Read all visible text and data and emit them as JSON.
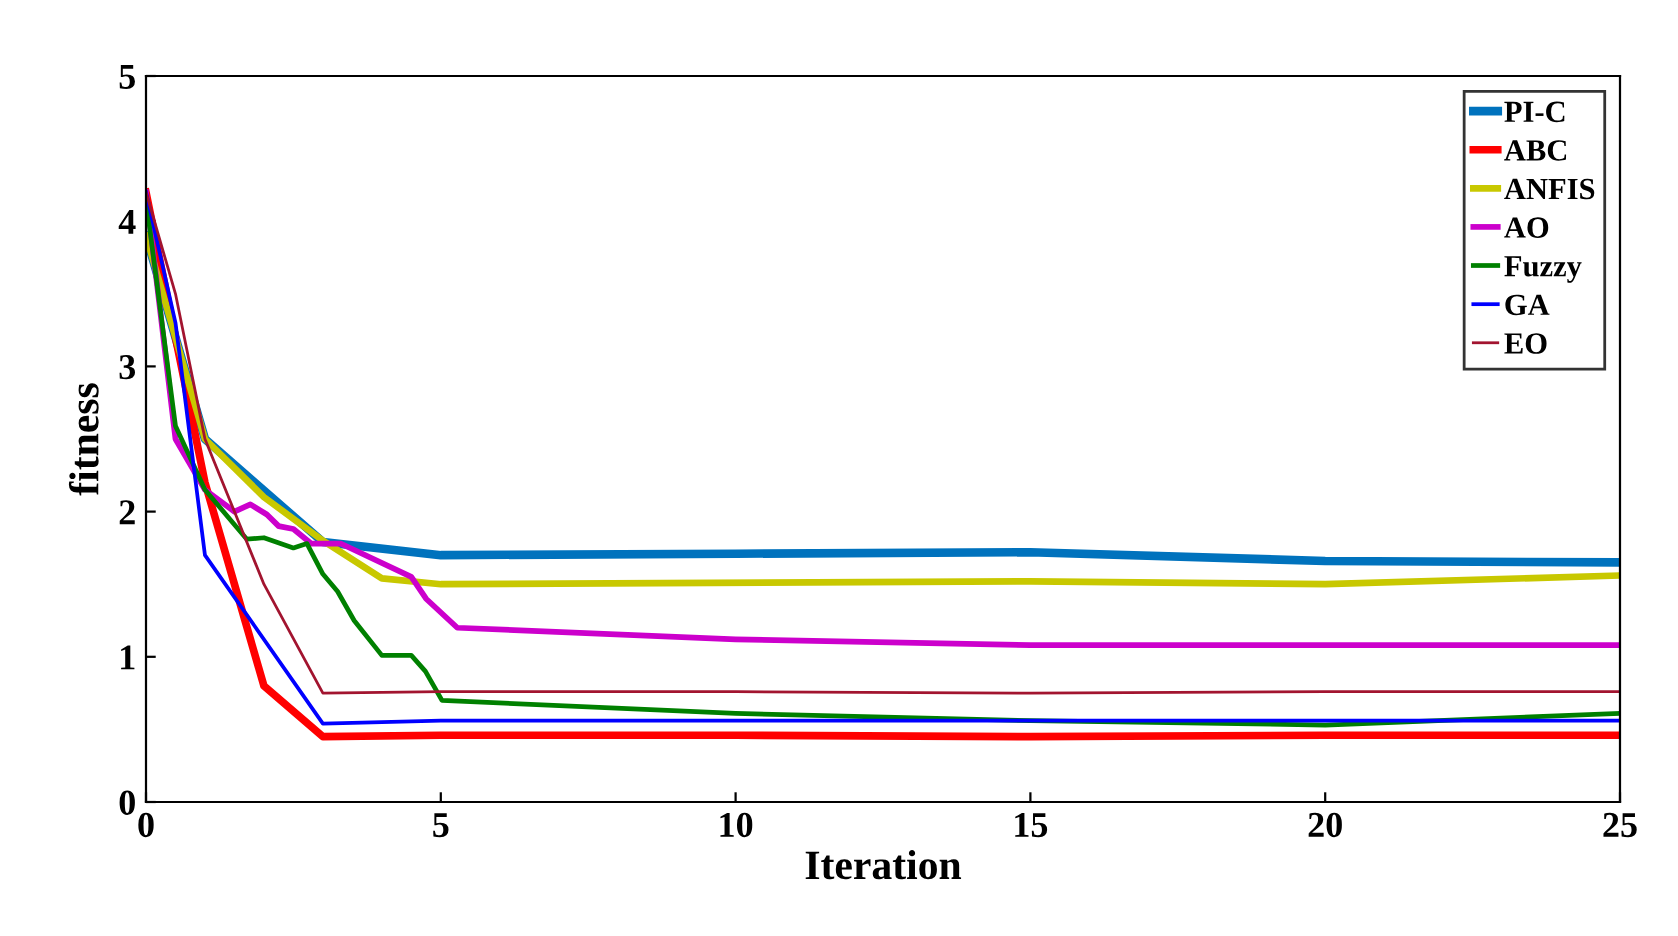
{
  "chart_data": {
    "type": "line",
    "xlabel": "Iteration",
    "ylabel": "fitness",
    "xlim": [
      0,
      25
    ],
    "ylim": [
      0,
      5
    ],
    "xticks": [
      0,
      5,
      10,
      15,
      20,
      25
    ],
    "yticks": [
      0,
      1,
      2,
      3,
      4,
      5
    ],
    "grid": false,
    "legend": "top right",
    "marker": "none",
    "line_style": "solid",
    "series": [
      {
        "name": "PI-C",
        "color": "#0072bd",
        "x": [
          0,
          1,
          3,
          5,
          10,
          15,
          20,
          25
        ],
        "values": [
          3.9,
          2.5,
          1.79,
          1.7,
          1.71,
          1.72,
          1.66,
          1.65
        ]
      },
      {
        "name": "ABC",
        "color": "#ff0000",
        "x": [
          0,
          1,
          2,
          3,
          5,
          10,
          15,
          20,
          25
        ],
        "values": [
          4.2,
          2.2,
          0.8,
          0.45,
          0.46,
          0.46,
          0.45,
          0.46,
          0.46
        ]
      },
      {
        "name": "ANFIS",
        "color": "#c8c800",
        "x": [
          0,
          1,
          2,
          3,
          4,
          5,
          15,
          20,
          25
        ],
        "values": [
          3.9,
          2.5,
          2.1,
          1.8,
          1.54,
          1.5,
          1.52,
          1.5,
          1.56
        ]
      },
      {
        "name": "AO",
        "color": "#cc00cc",
        "x": [
          0,
          0.5,
          1,
          1.5,
          1.77,
          2.05,
          2.25,
          2.5,
          2.8,
          3.3,
          4.5,
          4.75,
          5.28,
          10,
          15,
          20,
          25
        ],
        "values": [
          4.2,
          2.5,
          2.15,
          2.0,
          2.05,
          1.98,
          1.9,
          1.88,
          1.78,
          1.78,
          1.55,
          1.4,
          1.2,
          1.12,
          1.08,
          1.08,
          1.08
        ]
      },
      {
        "name": "Fuzzy",
        "color": "#008000",
        "x": [
          0,
          0.5,
          1,
          1.71,
          2.0,
          2.5,
          2.73,
          3.0,
          3.25,
          3.53,
          4.0,
          4.5,
          4.74,
          5.02,
          10,
          15,
          20,
          25
        ],
        "values": [
          4.15,
          2.59,
          2.15,
          1.81,
          1.82,
          1.75,
          1.78,
          1.57,
          1.45,
          1.25,
          1.01,
          1.01,
          0.9,
          0.7,
          0.61,
          0.56,
          0.53,
          0.61
        ]
      },
      {
        "name": "GA",
        "color": "#0000ff",
        "x": [
          0,
          0.5,
          1,
          3,
          5,
          10,
          15,
          20,
          25
        ],
        "values": [
          4.2,
          3.3,
          1.7,
          0.54,
          0.56,
          0.56,
          0.56,
          0.56,
          0.56
        ]
      },
      {
        "name": "EO",
        "color": "#a2142f",
        "x": [
          0,
          0.5,
          1,
          2,
          3,
          5,
          10,
          15,
          20,
          25
        ],
        "values": [
          4.2,
          3.5,
          2.5,
          1.5,
          0.75,
          0.76,
          0.76,
          0.75,
          0.76,
          0.76
        ]
      }
    ]
  }
}
